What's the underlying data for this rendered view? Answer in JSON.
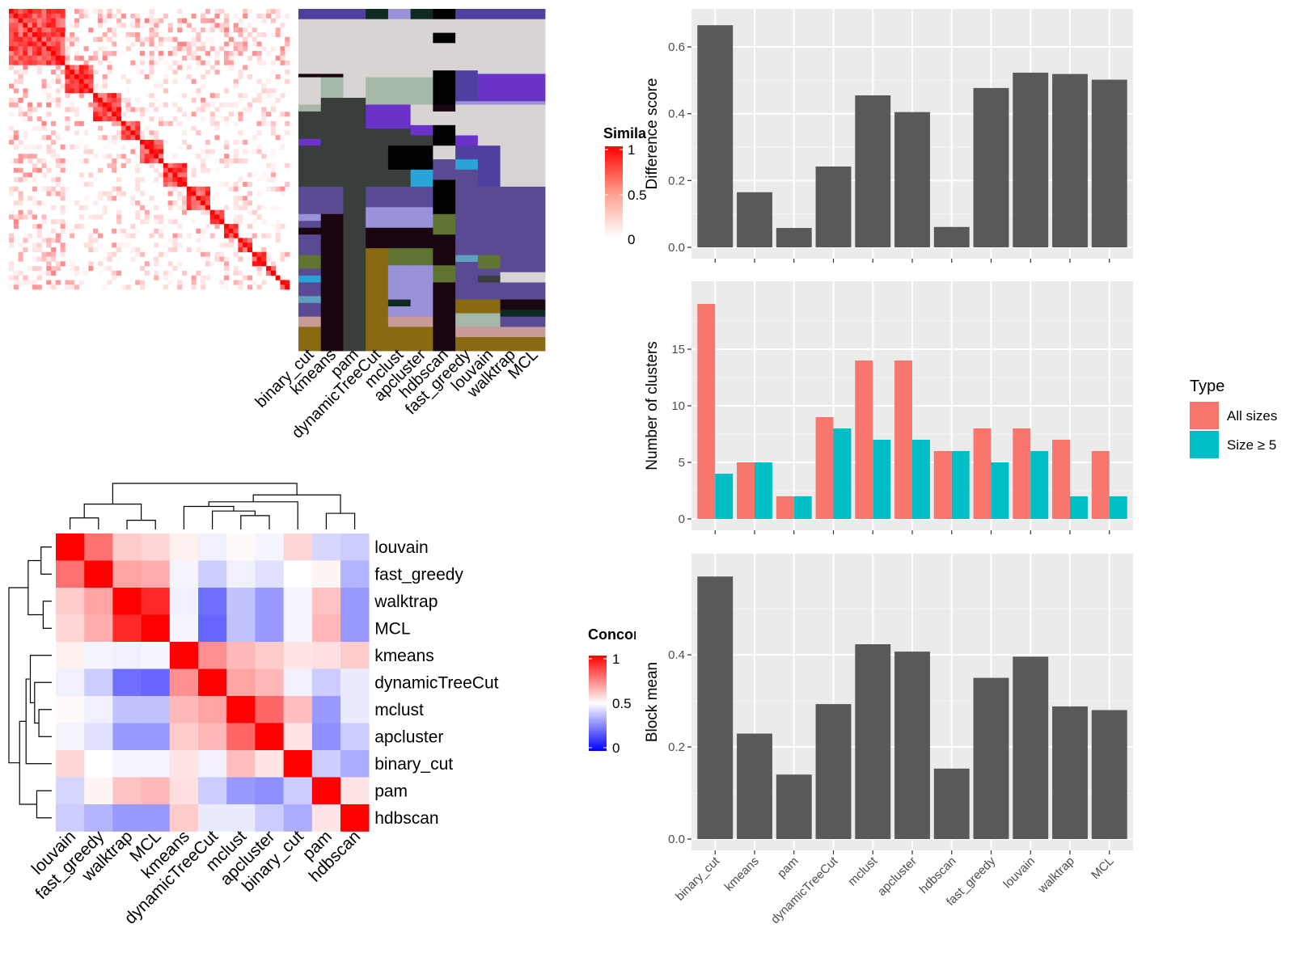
{
  "methods": [
    "binary_cut",
    "kmeans",
    "pam",
    "dynamicTreeCut",
    "mclust",
    "apcluster",
    "hdbscan",
    "fast_greedy",
    "louvain",
    "walktrap",
    "MCL"
  ],
  "similarity_legend": {
    "title": "Similarity",
    "ticks": [
      "1",
      "0.5",
      "0"
    ]
  },
  "concordance_legend": {
    "title": "Concordance",
    "ticks": [
      "1",
      "0.5",
      "0"
    ]
  },
  "concordance_order": [
    "louvain",
    "fast_greedy",
    "walktrap",
    "MCL",
    "kmeans",
    "dynamicTreeCut",
    "mclust",
    "apcluster",
    "binary_cut",
    "pam",
    "hdbscan"
  ],
  "concordance_matrix": [
    [
      1.0,
      0.78,
      0.6,
      0.58,
      0.53,
      0.47,
      0.51,
      0.48,
      0.58,
      0.42,
      0.4
    ],
    [
      0.78,
      1.0,
      0.68,
      0.66,
      0.48,
      0.4,
      0.47,
      0.44,
      0.5,
      0.52,
      0.35
    ],
    [
      0.6,
      0.68,
      1.0,
      0.92,
      0.47,
      0.22,
      0.38,
      0.3,
      0.48,
      0.62,
      0.3
    ],
    [
      0.58,
      0.66,
      0.92,
      1.0,
      0.48,
      0.2,
      0.38,
      0.3,
      0.48,
      0.64,
      0.3
    ],
    [
      0.53,
      0.48,
      0.47,
      0.48,
      1.0,
      0.72,
      0.64,
      0.6,
      0.55,
      0.56,
      0.6
    ],
    [
      0.47,
      0.4,
      0.22,
      0.2,
      0.72,
      1.0,
      0.68,
      0.64,
      0.47,
      0.4,
      0.46
    ],
    [
      0.51,
      0.47,
      0.38,
      0.38,
      0.64,
      0.68,
      1.0,
      0.8,
      0.63,
      0.3,
      0.46
    ],
    [
      0.48,
      0.44,
      0.3,
      0.3,
      0.6,
      0.64,
      0.8,
      1.0,
      0.55,
      0.28,
      0.4
    ],
    [
      0.58,
      0.5,
      0.48,
      0.48,
      0.55,
      0.47,
      0.63,
      0.55,
      1.0,
      0.4,
      0.34
    ],
    [
      0.42,
      0.52,
      0.62,
      0.64,
      0.56,
      0.4,
      0.3,
      0.28,
      0.4,
      1.0,
      0.55
    ],
    [
      0.4,
      0.35,
      0.3,
      0.3,
      0.6,
      0.46,
      0.46,
      0.4,
      0.34,
      0.55,
      1.0
    ]
  ],
  "chart_data": [
    {
      "type": "bar",
      "categories": [
        "binary_cut",
        "kmeans",
        "pam",
        "dynamicTreeCut",
        "mclust",
        "apcluster",
        "hdbscan",
        "fast_greedy",
        "louvain",
        "walktrap",
        "MCL"
      ],
      "values": [
        0.665,
        0.165,
        0.058,
        0.242,
        0.455,
        0.405,
        0.061,
        0.477,
        0.523,
        0.519,
        0.502
      ],
      "xlabel": "",
      "ylabel": "Difference score",
      "ylim": [
        0,
        0.68
      ],
      "yticks": [
        0.0,
        0.2,
        0.4,
        0.6
      ],
      "ytick_labels": [
        "0.0",
        "0.2",
        "0.4",
        "0.6"
      ],
      "grid": true
    },
    {
      "type": "bar",
      "categories": [
        "binary_cut",
        "kmeans",
        "pam",
        "dynamicTreeCut",
        "mclust",
        "apcluster",
        "hdbscan",
        "fast_greedy",
        "louvain",
        "walktrap",
        "MCL"
      ],
      "series": [
        {
          "name": "All sizes",
          "color": "#F8766D",
          "values": [
            19,
            5,
            2,
            9,
            14,
            14,
            6,
            8,
            8,
            7,
            6
          ]
        },
        {
          "name": "Size ≥ 5",
          "color": "#00BFC4",
          "values": [
            4,
            5,
            2,
            8,
            7,
            7,
            6,
            5,
            6,
            2,
            2
          ]
        }
      ],
      "xlabel": "",
      "ylabel": "Number of clusters",
      "ylim": [
        0,
        20
      ],
      "yticks": [
        0,
        5,
        10,
        15
      ],
      "ytick_labels": [
        "0",
        "5",
        "10",
        "15"
      ],
      "legend": {
        "title": "Type",
        "position": "right"
      },
      "grid": true
    },
    {
      "type": "bar",
      "categories": [
        "binary_cut",
        "kmeans",
        "pam",
        "dynamicTreeCut",
        "mclust",
        "apcluster",
        "hdbscan",
        "fast_greedy",
        "louvain",
        "walktrap",
        "MCL"
      ],
      "values": [
        0.57,
        0.229,
        0.14,
        0.293,
        0.423,
        0.407,
        0.153,
        0.35,
        0.396,
        0.288,
        0.28
      ],
      "xlabel": "",
      "ylabel": "Block mean",
      "ylim": [
        0,
        0.595
      ],
      "yticks": [
        0.0,
        0.2,
        0.4
      ],
      "ytick_labels": [
        "0.0",
        "0.2",
        "0.4"
      ],
      "grid": true
    }
  ]
}
